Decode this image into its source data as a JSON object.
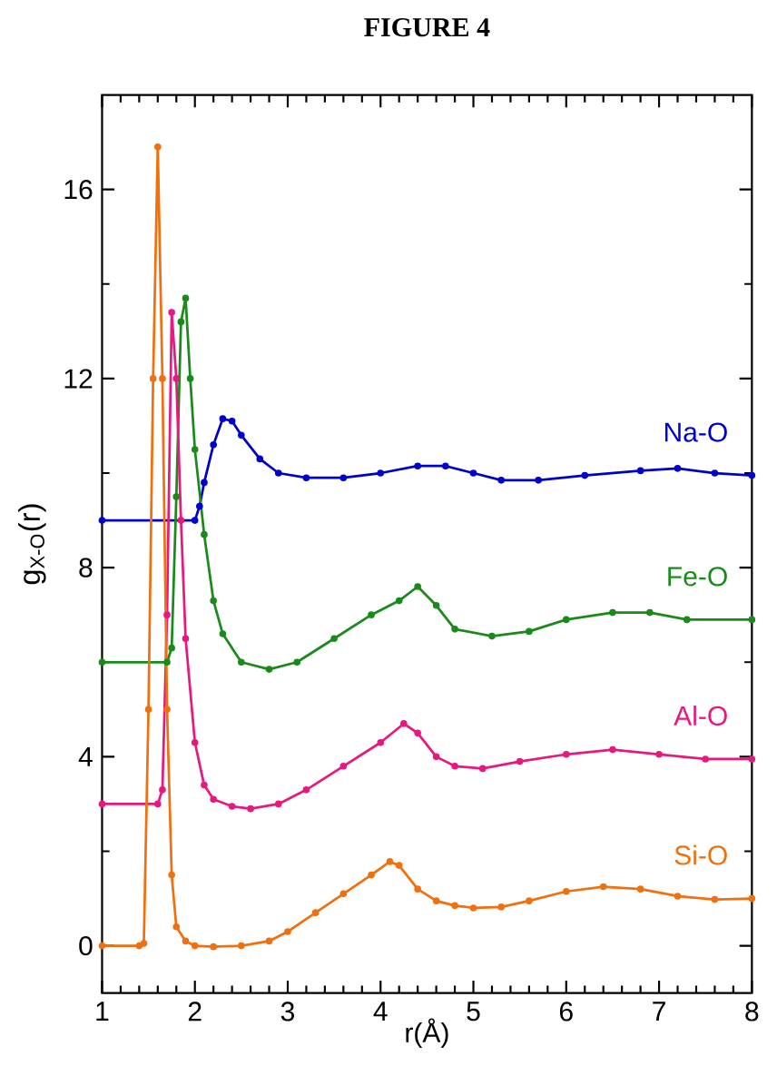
{
  "chart_data": {
    "type": "line",
    "title": "FIGURE 4",
    "xlabel": "r(Å)",
    "ylabel": "g$_{X-O}$(r)",
    "xlim": [
      1,
      8
    ],
    "ylim": [
      -1,
      18
    ],
    "xticks": [
      1,
      2,
      3,
      4,
      5,
      6,
      7,
      8
    ],
    "yticks": [
      0,
      4,
      8,
      12,
      16
    ],
    "marker": "circle",
    "line_style": "solid",
    "grid": false,
    "legend": false,
    "series": [
      {
        "name": "Na-O",
        "color": "#0000cc",
        "x": [
          1.0,
          2.0,
          2.05,
          2.1,
          2.2,
          2.3,
          2.4,
          2.5,
          2.7,
          2.9,
          3.2,
          3.6,
          4.0,
          4.4,
          4.7,
          5.0,
          5.3,
          5.7,
          6.2,
          6.8,
          7.2,
          7.6,
          8.0
        ],
        "values": [
          9,
          9,
          9.3,
          9.8,
          10.6,
          11.15,
          11.1,
          10.8,
          10.3,
          10.0,
          9.9,
          9.9,
          10.0,
          10.15,
          10.15,
          10.0,
          9.85,
          9.85,
          9.95,
          10.05,
          10.1,
          10.0,
          9.95
        ]
      },
      {
        "name": "Fe-O",
        "color": "#1a8a1a",
        "x": [
          1.0,
          1.7,
          1.75,
          1.8,
          1.85,
          1.9,
          1.95,
          2.0,
          2.1,
          2.2,
          2.3,
          2.5,
          2.8,
          3.1,
          3.5,
          3.9,
          4.2,
          4.4,
          4.6,
          4.8,
          5.2,
          5.6,
          6.0,
          6.5,
          6.9,
          7.3,
          8.0
        ],
        "values": [
          6,
          6,
          6.3,
          9.5,
          13.2,
          13.7,
          12,
          10.5,
          8.7,
          7.3,
          6.6,
          6.0,
          5.85,
          6.0,
          6.5,
          7.0,
          7.3,
          7.6,
          7.2,
          6.7,
          6.55,
          6.65,
          6.9,
          7.05,
          7.05,
          6.9,
          6.9
        ]
      },
      {
        "name": "Al-O",
        "color": "#e6197f",
        "x": [
          1.0,
          1.6,
          1.65,
          1.7,
          1.75,
          1.8,
          1.85,
          1.9,
          2.0,
          2.1,
          2.2,
          2.4,
          2.6,
          2.9,
          3.2,
          3.6,
          4.0,
          4.25,
          4.4,
          4.6,
          4.8,
          5.1,
          5.5,
          6.0,
          6.5,
          7.0,
          7.5,
          8.0
        ],
        "values": [
          3,
          3,
          3.3,
          7,
          13.4,
          12,
          9,
          6.5,
          4.3,
          3.4,
          3.1,
          2.95,
          2.9,
          3.0,
          3.3,
          3.8,
          4.3,
          4.7,
          4.5,
          4.0,
          3.8,
          3.75,
          3.9,
          4.05,
          4.15,
          4.05,
          3.95,
          3.95
        ]
      },
      {
        "name": "Si-O",
        "color": "#f07010",
        "x": [
          1.0,
          1.4,
          1.45,
          1.5,
          1.55,
          1.6,
          1.65,
          1.7,
          1.75,
          1.8,
          1.9,
          2.0,
          2.2,
          2.5,
          2.8,
          3.0,
          3.3,
          3.6,
          3.9,
          4.1,
          4.2,
          4.4,
          4.6,
          4.8,
          5.0,
          5.3,
          5.6,
          6.0,
          6.4,
          6.8,
          7.2,
          7.6,
          8.0
        ],
        "values": [
          0,
          0,
          0.05,
          5,
          12,
          16.9,
          12,
          5,
          1.5,
          0.4,
          0.1,
          0.0,
          -0.02,
          0.0,
          0.1,
          0.3,
          0.7,
          1.1,
          1.5,
          1.78,
          1.7,
          1.2,
          0.95,
          0.85,
          0.8,
          0.82,
          0.95,
          1.15,
          1.25,
          1.2,
          1.05,
          0.98,
          1.0
        ]
      }
    ]
  }
}
